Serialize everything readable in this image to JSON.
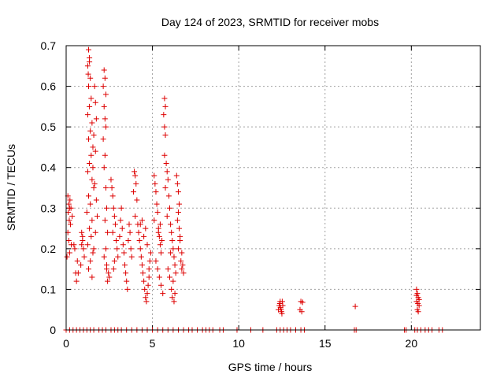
{
  "chart_data": {
    "type": "scatter",
    "title": "Day 124 of 2023, SRMTID for receiver mobs",
    "xlabel": "GPS time / hours",
    "ylabel": "SRMTID / TECUs",
    "xlim": [
      0,
      24
    ],
    "ylim": [
      0,
      0.7
    ],
    "x_ticks": [
      0,
      5,
      10,
      15,
      20
    ],
    "y_ticks": [
      0,
      0.1,
      0.2,
      0.3,
      0.4,
      0.5,
      0.6,
      0.7
    ],
    "x_tick_labels": [
      "0",
      "5",
      "10",
      "15",
      "20"
    ],
    "y_tick_labels": [
      "0",
      "0.1",
      "0.2",
      "0.3",
      "0.4",
      "0.5",
      "0.6",
      "0.7"
    ],
    "grid": true,
    "marker": "+",
    "color": "#dd0000",
    "series": [
      {
        "name": "mobs",
        "points": [
          [
            0.1,
            0.33
          ],
          [
            0.15,
            0.31
          ],
          [
            0.2,
            0.3
          ],
          [
            0.12,
            0.29
          ],
          [
            0.18,
            0.27
          ],
          [
            0.22,
            0.32
          ],
          [
            0.25,
            0.26
          ],
          [
            0.1,
            0.24
          ],
          [
            0.3,
            0.21
          ],
          [
            0.2,
            0.19
          ],
          [
            0.15,
            0.22
          ],
          [
            0.05,
            0.18
          ],
          [
            0.35,
            0.28
          ],
          [
            0.28,
            0.3
          ],
          [
            0.5,
            0.2
          ],
          [
            0.55,
            0.14
          ],
          [
            0.6,
            0.12
          ],
          [
            0.65,
            0.17
          ],
          [
            0.7,
            0.14
          ],
          [
            0.45,
            0.21
          ],
          [
            0.9,
            0.24
          ],
          [
            0.95,
            0.22
          ],
          [
            1.0,
            0.2
          ],
          [
            0.85,
            0.16
          ],
          [
            1.05,
            0.18
          ],
          [
            0.9,
            0.21
          ],
          [
            0.95,
            0.23
          ],
          [
            1.3,
            0.69
          ],
          [
            1.35,
            0.67
          ],
          [
            1.25,
            0.65
          ],
          [
            1.4,
            0.62
          ],
          [
            1.3,
            0.6
          ],
          [
            1.45,
            0.57
          ],
          [
            1.35,
            0.55
          ],
          [
            1.25,
            0.53
          ],
          [
            1.5,
            0.51
          ],
          [
            1.4,
            0.49
          ],
          [
            1.3,
            0.47
          ],
          [
            1.55,
            0.45
          ],
          [
            1.45,
            0.43
          ],
          [
            1.35,
            0.41
          ],
          [
            1.25,
            0.39
          ],
          [
            1.5,
            0.37
          ],
          [
            1.6,
            0.35
          ],
          [
            1.3,
            0.33
          ],
          [
            1.4,
            0.31
          ],
          [
            1.2,
            0.29
          ],
          [
            1.5,
            0.27
          ],
          [
            1.35,
            0.25
          ],
          [
            1.45,
            0.23
          ],
          [
            1.25,
            0.21
          ],
          [
            1.55,
            0.19
          ],
          [
            1.4,
            0.17
          ],
          [
            1.3,
            0.15
          ],
          [
            1.5,
            0.13
          ],
          [
            1.65,
            0.6
          ],
          [
            1.7,
            0.56
          ],
          [
            1.75,
            0.52
          ],
          [
            1.6,
            0.48
          ],
          [
            1.7,
            0.44
          ],
          [
            1.55,
            0.4
          ],
          [
            1.65,
            0.36
          ],
          [
            1.75,
            0.32
          ],
          [
            1.8,
            0.28
          ],
          [
            1.7,
            0.24
          ],
          [
            1.6,
            0.2
          ],
          [
            1.35,
            0.66
          ],
          [
            1.28,
            0.63
          ],
          [
            2.2,
            0.64
          ],
          [
            2.25,
            0.62
          ],
          [
            2.15,
            0.6
          ],
          [
            2.3,
            0.58
          ],
          [
            2.2,
            0.55
          ],
          [
            2.25,
            0.52
          ],
          [
            2.3,
            0.5
          ],
          [
            2.15,
            0.47
          ],
          [
            2.25,
            0.43
          ],
          [
            2.2,
            0.4
          ],
          [
            2.3,
            0.35
          ],
          [
            2.35,
            0.3
          ],
          [
            2.25,
            0.27
          ],
          [
            2.4,
            0.24
          ],
          [
            2.3,
            0.2
          ],
          [
            2.35,
            0.16
          ],
          [
            2.45,
            0.14
          ],
          [
            2.4,
            0.12
          ],
          [
            2.5,
            0.13
          ],
          [
            2.35,
            0.15
          ],
          [
            2.2,
            0.18
          ],
          [
            2.6,
            0.37
          ],
          [
            2.65,
            0.35
          ],
          [
            2.7,
            0.33
          ],
          [
            2.75,
            0.3
          ],
          [
            2.8,
            0.28
          ],
          [
            2.85,
            0.26
          ],
          [
            2.7,
            0.24
          ],
          [
            2.9,
            0.22
          ],
          [
            2.95,
            0.2
          ],
          [
            3.0,
            0.18
          ],
          [
            2.8,
            0.17
          ],
          [
            2.75,
            0.15
          ],
          [
            3.1,
            0.23
          ],
          [
            3.15,
            0.27
          ],
          [
            3.2,
            0.3
          ],
          [
            3.25,
            0.25
          ],
          [
            3.3,
            0.21
          ],
          [
            3.35,
            0.19
          ],
          [
            3.4,
            0.16
          ],
          [
            3.45,
            0.14
          ],
          [
            3.5,
            0.12
          ],
          [
            3.55,
            0.1
          ],
          [
            3.6,
            0.22
          ],
          [
            3.65,
            0.26
          ],
          [
            3.7,
            0.24
          ],
          [
            3.75,
            0.2
          ],
          [
            3.8,
            0.18
          ],
          [
            3.95,
            0.39
          ],
          [
            4.0,
            0.38
          ],
          [
            4.05,
            0.36
          ],
          [
            3.9,
            0.34
          ],
          [
            4.1,
            0.32
          ],
          [
            4.0,
            0.28
          ],
          [
            4.15,
            0.26
          ],
          [
            4.2,
            0.24
          ],
          [
            4.25,
            0.22
          ],
          [
            4.3,
            0.2
          ],
          [
            4.35,
            0.18
          ],
          [
            4.4,
            0.16
          ],
          [
            4.45,
            0.14
          ],
          [
            4.5,
            0.12
          ],
          [
            4.55,
            0.1
          ],
          [
            4.6,
            0.08
          ],
          [
            4.65,
            0.07
          ],
          [
            4.7,
            0.09
          ],
          [
            4.75,
            0.11
          ],
          [
            4.8,
            0.13
          ],
          [
            4.85,
            0.17
          ],
          [
            4.9,
            0.19
          ],
          [
            4.5,
            0.23
          ],
          [
            4.6,
            0.25
          ],
          [
            4.4,
            0.27
          ],
          [
            4.3,
            0.26
          ],
          [
            4.7,
            0.21
          ],
          [
            4.8,
            0.15
          ],
          [
            5.1,
            0.38
          ],
          [
            5.15,
            0.36
          ],
          [
            5.2,
            0.34
          ],
          [
            5.25,
            0.31
          ],
          [
            5.3,
            0.29
          ],
          [
            5.1,
            0.27
          ],
          [
            5.35,
            0.25
          ],
          [
            5.4,
            0.23
          ],
          [
            5.45,
            0.21
          ],
          [
            5.5,
            0.19
          ],
          [
            5.2,
            0.17
          ],
          [
            5.3,
            0.15
          ],
          [
            5.4,
            0.13
          ],
          [
            5.5,
            0.11
          ],
          [
            5.6,
            0.09
          ],
          [
            5.35,
            0.24
          ],
          [
            5.45,
            0.26
          ],
          [
            5.55,
            0.22
          ],
          [
            5.7,
            0.57
          ],
          [
            5.75,
            0.55
          ],
          [
            5.65,
            0.53
          ],
          [
            5.7,
            0.5
          ],
          [
            5.75,
            0.48
          ],
          [
            5.7,
            0.43
          ],
          [
            5.8,
            0.41
          ],
          [
            5.85,
            0.39
          ],
          [
            5.9,
            0.37
          ],
          [
            5.75,
            0.35
          ],
          [
            5.95,
            0.33
          ],
          [
            6.0,
            0.3
          ],
          [
            5.85,
            0.28
          ],
          [
            6.05,
            0.26
          ],
          [
            6.1,
            0.24
          ],
          [
            6.15,
            0.22
          ],
          [
            6.2,
            0.2
          ],
          [
            6.25,
            0.18
          ],
          [
            6.3,
            0.16
          ],
          [
            6.35,
            0.14
          ],
          [
            6.2,
            0.12
          ],
          [
            6.1,
            0.1
          ],
          [
            6.15,
            0.08
          ],
          [
            6.25,
            0.07
          ],
          [
            6.3,
            0.09
          ],
          [
            6.0,
            0.13
          ],
          [
            5.9,
            0.15
          ],
          [
            6.05,
            0.19
          ],
          [
            6.4,
            0.38
          ],
          [
            6.45,
            0.36
          ],
          [
            6.5,
            0.34
          ],
          [
            6.55,
            0.31
          ],
          [
            6.5,
            0.29
          ],
          [
            6.45,
            0.27
          ],
          [
            6.55,
            0.25
          ],
          [
            6.6,
            0.23
          ],
          [
            6.5,
            0.2
          ],
          [
            6.65,
            0.17
          ],
          [
            6.7,
            0.15
          ],
          [
            6.75,
            0.16
          ],
          [
            6.8,
            0.14
          ],
          [
            6.7,
            0.19
          ],
          [
            6.6,
            0.22
          ],
          [
            12.3,
            0.05
          ],
          [
            12.35,
            0.06
          ],
          [
            12.4,
            0.07
          ],
          [
            12.45,
            0.05
          ],
          [
            12.5,
            0.04
          ],
          [
            12.55,
            0.06
          ],
          [
            12.38,
            0.065
          ],
          [
            12.42,
            0.055
          ],
          [
            12.48,
            0.045
          ],
          [
            12.52,
            0.07
          ],
          [
            13.6,
            0.07
          ],
          [
            13.65,
            0.045
          ],
          [
            13.55,
            0.05
          ],
          [
            13.7,
            0.068
          ],
          [
            16.75,
            0.058
          ],
          [
            20.3,
            0.1
          ],
          [
            20.35,
            0.09
          ],
          [
            20.4,
            0.08
          ],
          [
            20.3,
            0.07
          ],
          [
            20.45,
            0.06
          ],
          [
            20.35,
            0.05
          ],
          [
            20.4,
            0.045
          ],
          [
            20.3,
            0.085
          ],
          [
            20.45,
            0.075
          ],
          [
            20.38,
            0.065
          ],
          [
            0.0,
            0
          ],
          [
            0.2,
            0
          ],
          [
            0.4,
            0
          ],
          [
            0.6,
            0
          ],
          [
            0.8,
            0
          ],
          [
            1.0,
            0
          ],
          [
            1.2,
            0
          ],
          [
            1.4,
            0
          ],
          [
            1.6,
            0
          ],
          [
            1.9,
            0
          ],
          [
            2.1,
            0
          ],
          [
            2.3,
            0
          ],
          [
            2.6,
            0
          ],
          [
            2.8,
            0
          ],
          [
            3.0,
            0
          ],
          [
            3.2,
            0
          ],
          [
            3.5,
            0
          ],
          [
            3.8,
            0
          ],
          [
            4.1,
            0
          ],
          [
            4.4,
            0
          ],
          [
            4.7,
            0
          ],
          [
            5.0,
            0
          ],
          [
            5.3,
            0
          ],
          [
            5.6,
            0
          ],
          [
            5.9,
            0
          ],
          [
            6.2,
            0
          ],
          [
            6.5,
            0
          ],
          [
            6.8,
            0
          ],
          [
            7.1,
            0
          ],
          [
            7.3,
            0
          ],
          [
            7.6,
            0
          ],
          [
            7.9,
            0
          ],
          [
            8.1,
            0
          ],
          [
            8.3,
            0
          ],
          [
            8.5,
            0
          ],
          [
            8.9,
            0
          ],
          [
            9.1,
            0
          ],
          [
            9.9,
            0
          ],
          [
            10.7,
            0
          ],
          [
            11.4,
            0
          ],
          [
            12.2,
            0
          ],
          [
            12.4,
            0
          ],
          [
            12.6,
            0
          ],
          [
            12.8,
            0
          ],
          [
            13.0,
            0
          ],
          [
            13.3,
            0
          ],
          [
            13.6,
            0
          ],
          [
            13.8,
            0
          ],
          [
            16.7,
            0
          ],
          [
            16.8,
            0
          ],
          [
            19.6,
            0
          ],
          [
            19.7,
            0
          ],
          [
            20.2,
            0
          ],
          [
            20.35,
            0
          ],
          [
            20.55,
            0
          ],
          [
            20.8,
            0
          ],
          [
            21.0,
            0
          ],
          [
            21.2,
            0
          ],
          [
            21.6,
            0
          ],
          [
            21.8,
            0
          ]
        ]
      }
    ]
  }
}
